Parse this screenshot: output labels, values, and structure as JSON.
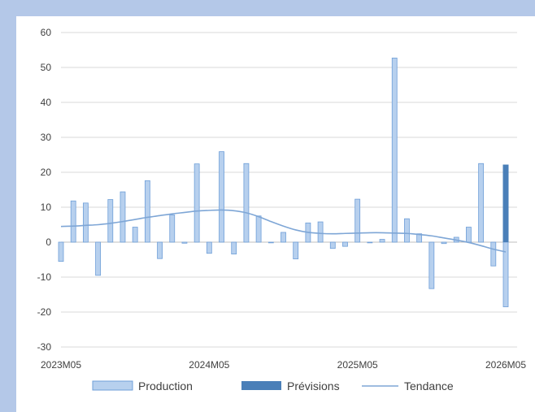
{
  "chart_data": {
    "type": "bar",
    "title": "",
    "xlabel": "",
    "ylabel": "",
    "ylim": [
      -30,
      60
    ],
    "yticks": [
      60,
      50,
      40,
      30,
      20,
      10,
      0,
      -10,
      -20,
      -30
    ],
    "xtick_labels": [
      "2023M05",
      "2024M05",
      "2025M05",
      "2026M05"
    ],
    "grid": true,
    "legend_position": "bottom",
    "colors": {
      "production_fill": "#b7d0ee",
      "production_edge": "#6f9fd8",
      "forecast": "#4a7fb8",
      "trend": "#7ea6d6",
      "grid": "#d9d9d9",
      "border": "#b4c8e8"
    },
    "series": [
      {
        "name": "Production",
        "style": "bar",
        "values": [
          -5.5,
          11.8,
          11.2,
          -9.5,
          12.2,
          14.4,
          4.3,
          17.6,
          -4.7,
          7.8,
          -0.3,
          22.4,
          -3.2,
          25.9,
          -3.4,
          22.5,
          7.5,
          -0.2,
          2.8,
          -4.8,
          5.5,
          5.8,
          -1.8,
          -1.2,
          12.3,
          -0.2,
          0.8,
          52.7,
          6.7,
          2.4,
          -13.3,
          -0.4,
          1.4,
          4.3,
          22.5,
          -6.8,
          -18.5
        ]
      },
      {
        "name": "Prévisions",
        "style": "bar",
        "values": [
          null,
          null,
          null,
          null,
          null,
          null,
          null,
          null,
          null,
          null,
          null,
          null,
          null,
          null,
          null,
          null,
          null,
          null,
          null,
          null,
          null,
          null,
          null,
          null,
          null,
          null,
          null,
          null,
          null,
          null,
          null,
          null,
          null,
          null,
          null,
          null,
          22.2
        ]
      },
      {
        "name": "Tendance",
        "style": "line",
        "values": [
          4.5,
          4.6,
          4.8,
          5.0,
          5.4,
          5.9,
          6.5,
          7.1,
          7.6,
          8.1,
          8.5,
          8.9,
          9.1,
          9.2,
          9.0,
          8.4,
          7.3,
          5.9,
          4.6,
          3.5,
          2.8,
          2.5,
          2.4,
          2.5,
          2.6,
          2.7,
          2.7,
          2.6,
          2.5,
          2.2,
          1.8,
          1.2,
          0.6,
          -0.1,
          -1.0,
          -2.0,
          -2.8
        ]
      }
    ]
  }
}
